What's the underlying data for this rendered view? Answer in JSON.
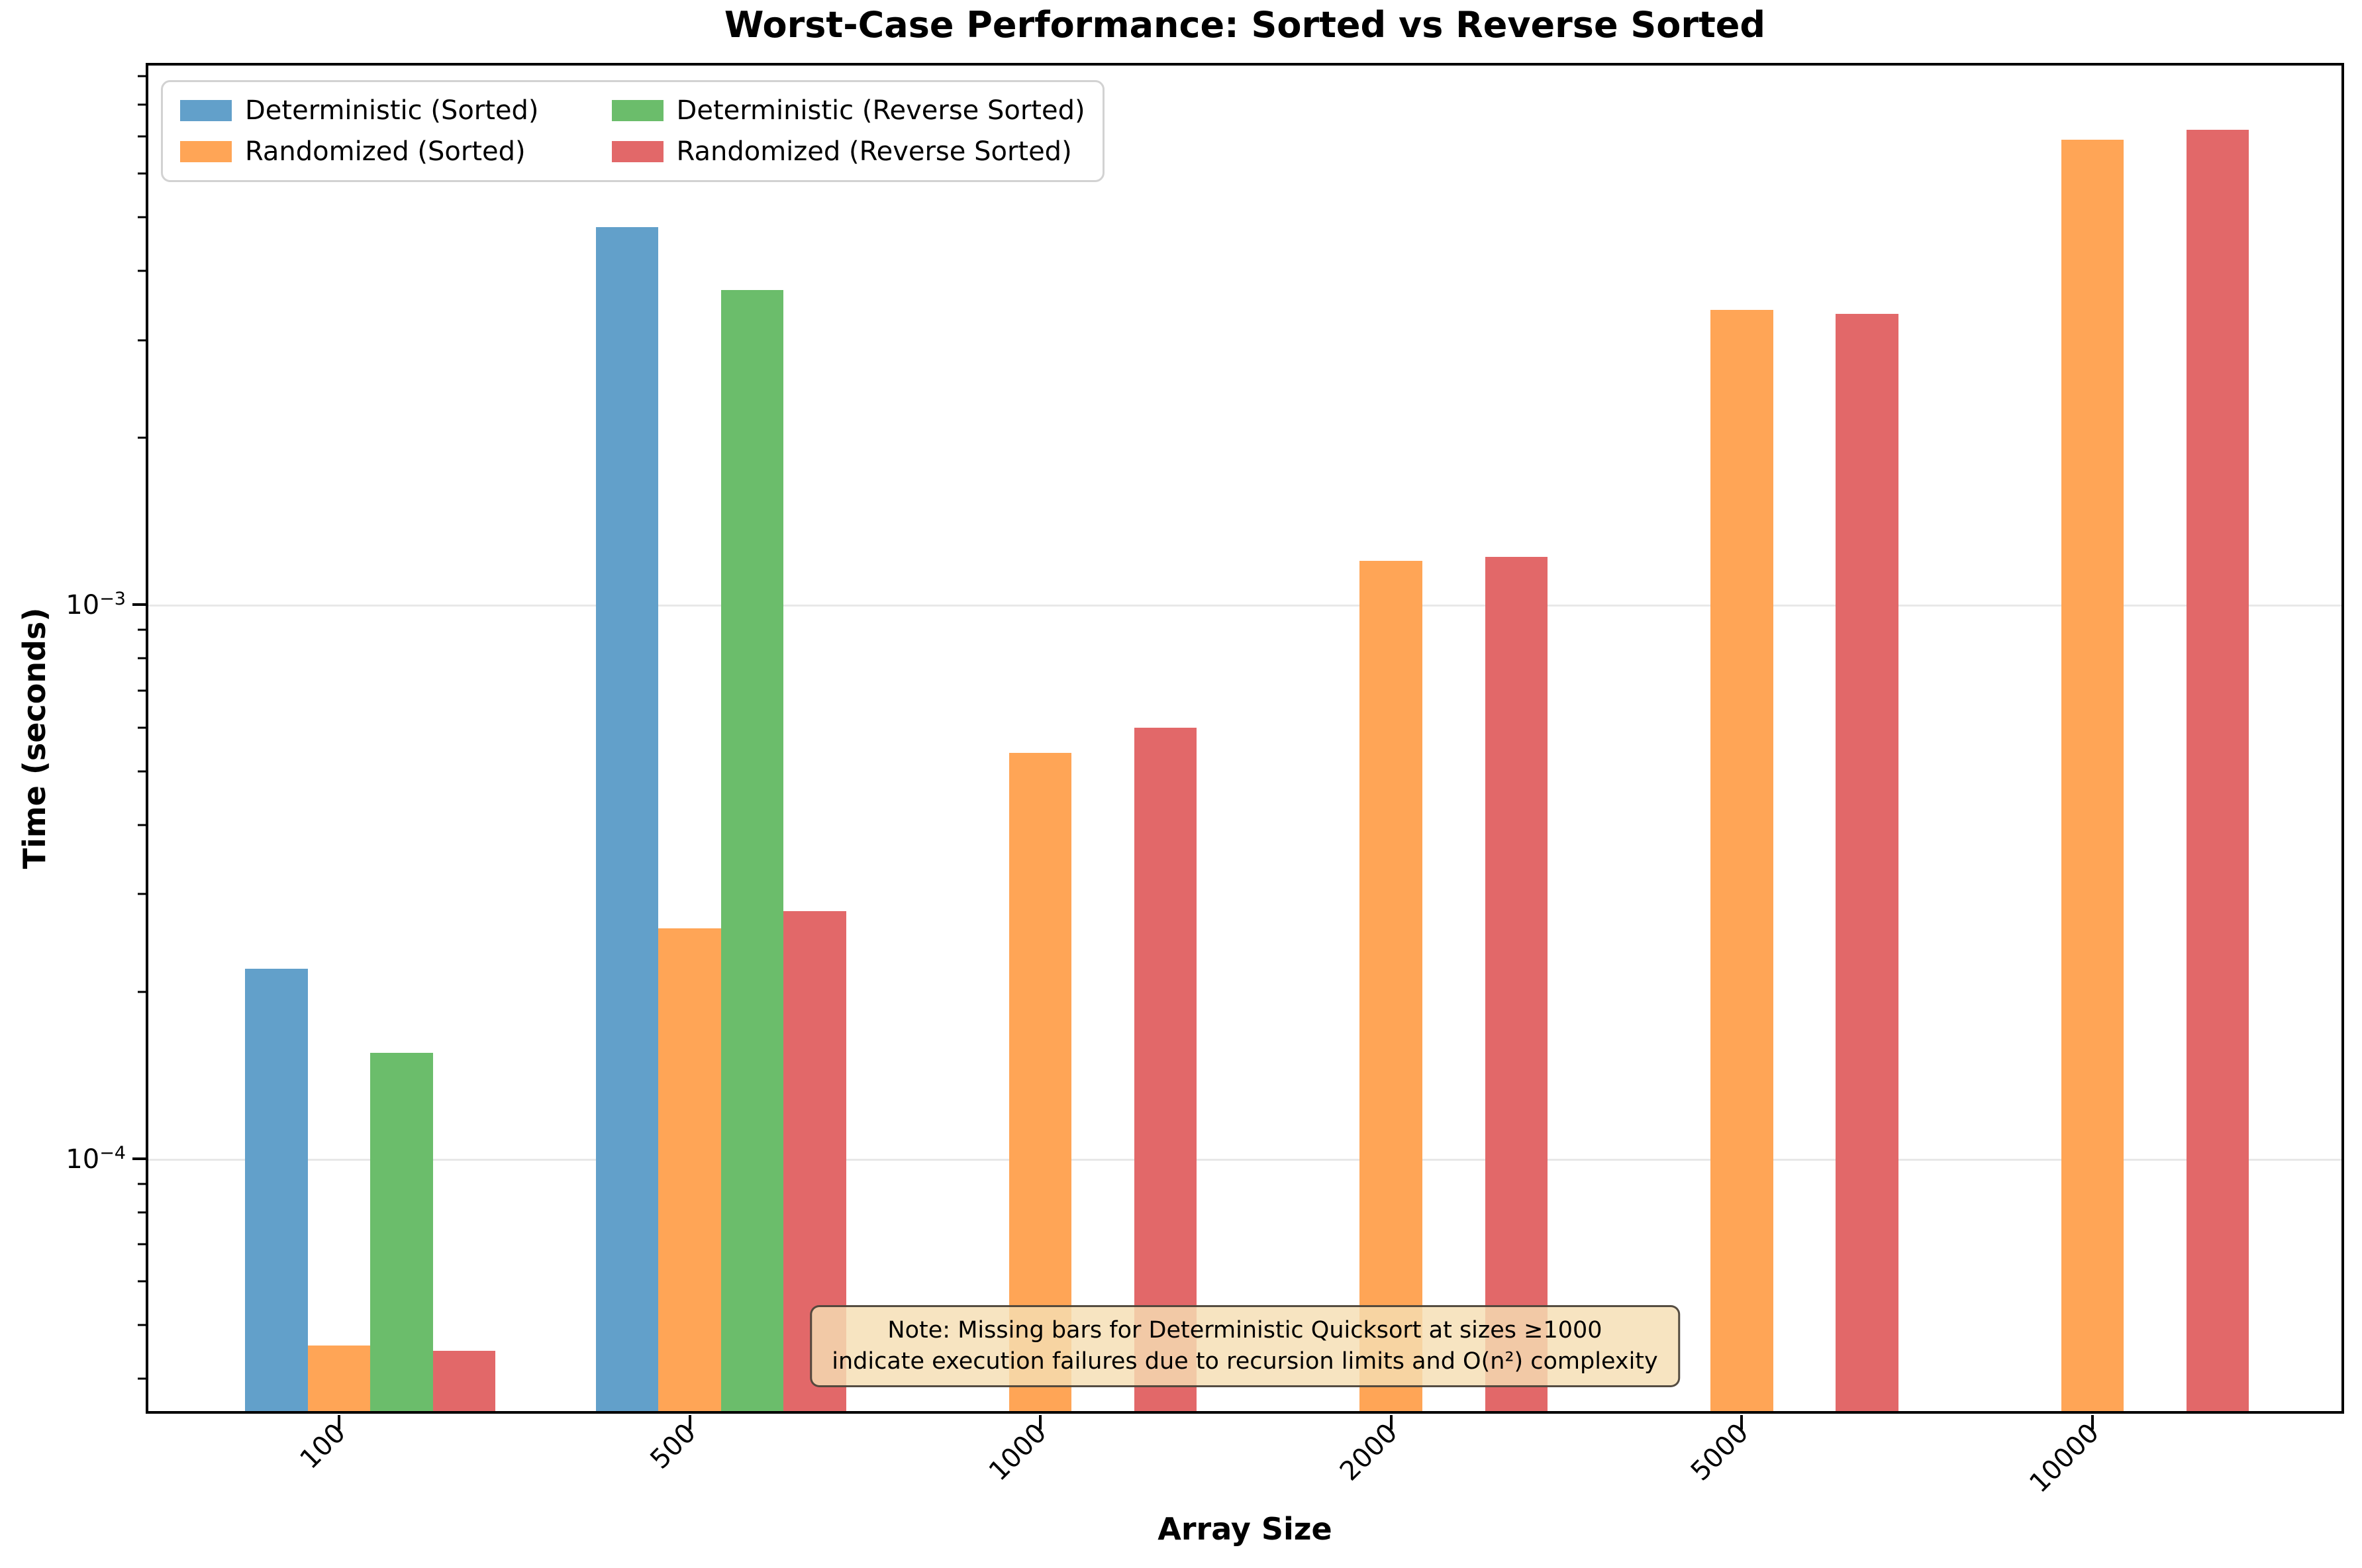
{
  "chart_data": {
    "type": "bar",
    "title": "Worst-Case Performance: Sorted vs Reverse Sorted",
    "xlabel": "Array Size",
    "ylabel": "Time (seconds)",
    "categories": [
      "100",
      "500",
      "1000",
      "2000",
      "5000",
      "10000"
    ],
    "series": [
      {
        "name": "Deterministic (Sorted)",
        "color": "#62A0CA",
        "values": [
          0.00022,
          0.0048,
          null,
          null,
          null,
          null
        ]
      },
      {
        "name": "Randomized (Sorted)",
        "color": "#FFA556",
        "values": [
          4.6e-05,
          0.00026,
          0.00054,
          0.0012,
          0.0034,
          0.0069
        ]
      },
      {
        "name": "Deterministic (Reverse Sorted)",
        "color": "#6BBD6B",
        "values": [
          0.000155,
          0.0037,
          null,
          null,
          null,
          null
        ]
      },
      {
        "name": "Randomized (Reverse Sorted)",
        "color": "#E26869",
        "values": [
          4.5e-05,
          0.00028,
          0.0006,
          0.00122,
          0.00335,
          0.0072
        ]
      }
    ],
    "yscale": "log",
    "ylim": [
      3.5e-05,
      0.0094
    ],
    "y_major_ticks": [
      {
        "value": 0.001,
        "base": "10",
        "exp": "−3"
      },
      {
        "value": 0.0001,
        "base": "10",
        "exp": "−4"
      }
    ],
    "grid": "major-y horizontal, light gray",
    "legend_position": "upper-left, 2 columns",
    "note_lines": [
      "Note: Missing bars for Deterministic Quicksort at sizes ≥1000",
      "indicate execution failures due to recursion limits and O(n²) complexity"
    ],
    "note_face_color": "#f5deb3"
  }
}
